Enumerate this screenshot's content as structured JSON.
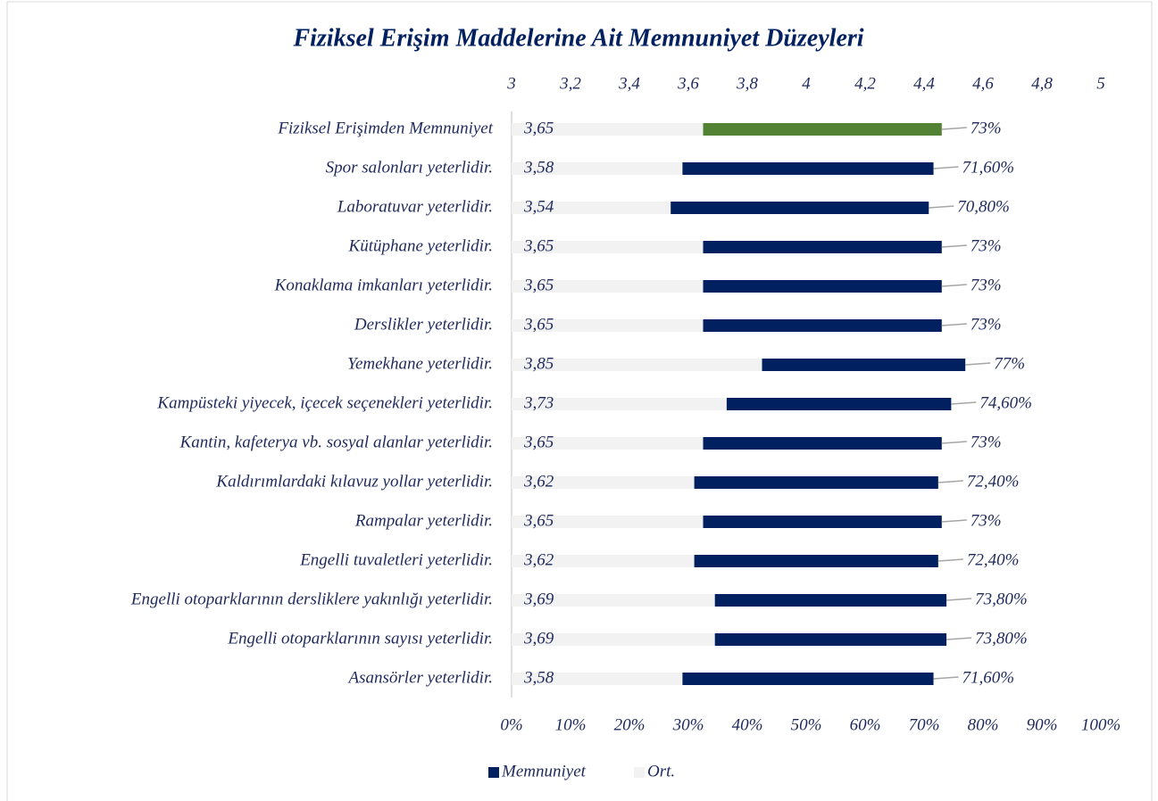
{
  "chart_data": {
    "type": "bar",
    "orientation": "horizontal",
    "title": "Fiziksel Erişim Maddelerine Ait Memnuniyet Düzeyleri",
    "categories": [
      "Fiziksel Erişimden Memnuniyet",
      "Spor salonları yeterlidir.",
      "Laboratuvar yeterlidir.",
      "Kütüphane yeterlidir.",
      "Konaklama imkanları yeterlidir.",
      "Derslikler yeterlidir.",
      "Yemekhane yeterlidir.",
      "Kampüsteki yiyecek, içecek seçenekleri yeterlidir.",
      "Kantin, kafeterya vb. sosyal alanlar yeterlidir.",
      "Kaldırımlardaki kılavuz yollar yeterlidir.",
      "Rampalar yeterlidir.",
      "Engelli tuvaletleri yeterlidir.",
      "Engelli otoparklarının dersliklere yakınlığı yeterlidir.",
      "Engelli otoparklarının sayısı yeterlidir.",
      "Asansörler yeterlidir."
    ],
    "series": [
      {
        "name": "Memnuniyet",
        "color": "#002060",
        "colors": [
          "#548235",
          "#002060",
          "#002060",
          "#002060",
          "#002060",
          "#002060",
          "#002060",
          "#002060",
          "#002060",
          "#002060",
          "#002060",
          "#002060",
          "#002060",
          "#002060",
          "#002060"
        ],
        "values": [
          73,
          71.6,
          70.8,
          73,
          73,
          73,
          77,
          74.6,
          73,
          72.4,
          73,
          72.4,
          73.8,
          73.8,
          71.6
        ],
        "value_labels": [
          "73%",
          "71,60%",
          "70,80%",
          "73%",
          "73%",
          "73%",
          "77%",
          "74,60%",
          "73%",
          "72,40%",
          "73%",
          "72,40%",
          "73,80%",
          "73,80%",
          "71,60%"
        ]
      },
      {
        "name": "Ort.",
        "color": "#f2f2f2",
        "axis": "x2",
        "values": [
          3.65,
          3.58,
          3.54,
          3.65,
          3.65,
          3.65,
          3.85,
          3.73,
          3.65,
          3.62,
          3.65,
          3.62,
          3.69,
          3.69,
          3.58
        ],
        "value_labels": [
          "3,65",
          "3,58",
          "3,54",
          "3,65",
          "3,65",
          "3,65",
          "3,85",
          "3,73",
          "3,65",
          "3,62",
          "3,65",
          "3,62",
          "3,69",
          "3,69",
          "3,58"
        ]
      }
    ],
    "xlim": [
      0,
      100
    ],
    "xticks": [
      {
        "value": 0,
        "label": "0%"
      },
      {
        "value": 10,
        "label": "10%"
      },
      {
        "value": 20,
        "label": "20%"
      },
      {
        "value": 30,
        "label": "30%"
      },
      {
        "value": 40,
        "label": "40%"
      },
      {
        "value": 50,
        "label": "50%"
      },
      {
        "value": 60,
        "label": "60%"
      },
      {
        "value": 70,
        "label": "70%"
      },
      {
        "value": 80,
        "label": "80%"
      },
      {
        "value": 90,
        "label": "90%"
      },
      {
        "value": 100,
        "label": "100%"
      }
    ],
    "x2lim": [
      3,
      5
    ],
    "x2ticks": [
      3,
      {
        "value": 3.2,
        "label": "3,2"
      },
      {
        "value": 3.4,
        "label": "3,4"
      },
      {
        "value": 3.6,
        "label": "3,6"
      },
      {
        "value": 3.8,
        "label": "3,8"
      },
      4,
      {
        "value": 4.2,
        "label": "4,2"
      },
      {
        "value": 4.4,
        "label": "4,4"
      },
      {
        "value": 4.6,
        "label": "4,6"
      },
      {
        "value": 4.8,
        "label": "4,8"
      },
      5
    ],
    "legend": "bottom"
  }
}
